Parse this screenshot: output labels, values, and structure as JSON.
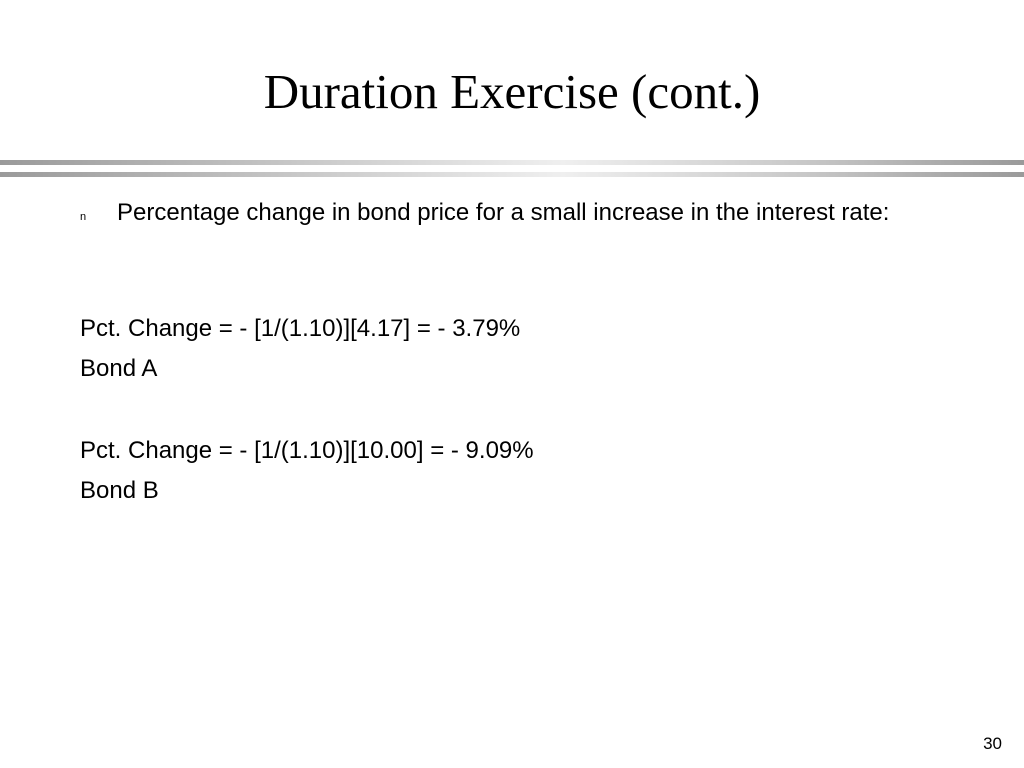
{
  "slide": {
    "title": "Duration Exercise (cont.)",
    "bullet_marker": "n",
    "bullet_text": "Percentage change in bond price for a small increase in the interest rate:",
    "calculations": [
      {
        "formula": "Pct. Change = - [1/(1.10)][4.17] = - 3.79%",
        "label": "Bond A"
      },
      {
        "formula": "Pct. Change = - [1/(1.10)][10.00] = - 9.09%",
        "label": "Bond B"
      }
    ],
    "page_number": "30"
  }
}
